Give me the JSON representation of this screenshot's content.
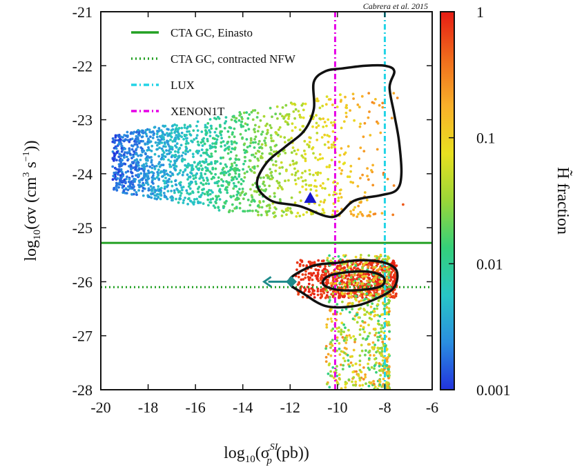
{
  "chart_data": {
    "type": "scatter",
    "credit": "Cabrera et al. 2015",
    "xlabel_parts": {
      "pre": "log",
      "sub": "10",
      "open": "(σ",
      "sup": "SI",
      "sub2": "p",
      "close": "(pb))"
    },
    "ylabel_parts": {
      "pre": "log",
      "sub": "10",
      "mid": "(σv (cm",
      "sup1": "3",
      "mid2": " s",
      "sup2": "−1",
      "close": "))"
    },
    "colorbar_label": "H̃ fraction",
    "xlim": [
      -20,
      -6
    ],
    "ylim": [
      -28,
      -21
    ],
    "x_ticks": [
      "-20",
      "-18",
      "-16",
      "-14",
      "-12",
      "-10",
      "-8",
      "-6"
    ],
    "y_ticks": [
      "-21",
      "-22",
      "-23",
      "-24",
      "-25",
      "-26",
      "-27",
      "-28"
    ],
    "colorbar": {
      "scale": "log",
      "range": [
        0.001,
        1
      ],
      "ticks": [
        "1",
        "0.1",
        "0.01",
        "0.001"
      ],
      "colors": [
        "#2233dd",
        "#2a8ee0",
        "#28c6c6",
        "#34d07a",
        "#9ad638",
        "#e8e020",
        "#f8b02a",
        "#f06c1c",
        "#e61c14"
      ]
    },
    "legend": {
      "position": "top-left",
      "entries": [
        {
          "label": "CTA GC, Einasto",
          "style": "solid",
          "color": "#22a022"
        },
        {
          "label": "CTA GC, contracted NFW",
          "style": "dotted",
          "color": "#22a022"
        },
        {
          "label": "LUX",
          "style": "dash-dot",
          "color": "#22d4e6"
        },
        {
          "label": "XENON1T",
          "style": "dash-dot",
          "color": "#e600e6"
        }
      ]
    },
    "reference_lines": [
      {
        "name": "CTA GC, Einasto",
        "orientation": "horizontal",
        "value": -25.28
      },
      {
        "name": "CTA GC, contracted NFW",
        "orientation": "horizontal",
        "value": -26.1
      },
      {
        "name": "LUX",
        "orientation": "vertical",
        "value": -8.0
      },
      {
        "name": "XENON1T",
        "orientation": "vertical",
        "value": -10.1
      }
    ],
    "scatter_regions": [
      {
        "name": "upper-cloud",
        "x_range": [
          -19.5,
          -7.2
        ],
        "y_range": [
          -24.8,
          -22.2
        ],
        "fraction_range": [
          0.001,
          0.5
        ],
        "note": "color increases with x"
      },
      {
        "name": "red-band",
        "x_range": [
          -11.8,
          -7.5
        ],
        "y_range": [
          -26.3,
          -25.6
        ],
        "fraction_range": [
          0.6,
          1
        ]
      },
      {
        "name": "lower-tail",
        "x_range": [
          -10.5,
          -7.8
        ],
        "y_range": [
          -28,
          -25.5
        ],
        "fraction_range": [
          0.01,
          0.3
        ]
      }
    ],
    "contours": [
      {
        "name": "upper-contour",
        "points": [
          [
            -11.0,
            -22.3
          ],
          [
            -10.5,
            -22.1
          ],
          [
            -9.8,
            -22.05
          ],
          [
            -8.8,
            -22.0
          ],
          [
            -8.0,
            -22.0
          ],
          [
            -7.6,
            -22.1
          ],
          [
            -7.8,
            -22.4
          ],
          [
            -7.6,
            -22.9
          ],
          [
            -7.4,
            -23.4
          ],
          [
            -7.3,
            -24.0
          ],
          [
            -7.5,
            -24.3
          ],
          [
            -8.2,
            -24.4
          ],
          [
            -9.3,
            -24.5
          ],
          [
            -10.2,
            -24.8
          ],
          [
            -11.6,
            -24.6
          ],
          [
            -12.8,
            -24.5
          ],
          [
            -13.4,
            -24.2
          ],
          [
            -13.0,
            -23.8
          ],
          [
            -12.2,
            -23.5
          ],
          [
            -11.4,
            -23.2
          ],
          [
            -11.0,
            -22.8
          ]
        ]
      },
      {
        "name": "lower-outer-contour",
        "points": [
          [
            -11.9,
            -25.9
          ],
          [
            -11.0,
            -25.7
          ],
          [
            -10.0,
            -25.65
          ],
          [
            -9.0,
            -25.6
          ],
          [
            -8.0,
            -25.65
          ],
          [
            -7.5,
            -25.8
          ],
          [
            -7.6,
            -26.1
          ],
          [
            -8.3,
            -26.3
          ],
          [
            -9.3,
            -26.45
          ],
          [
            -10.5,
            -26.45
          ],
          [
            -11.5,
            -26.2
          ],
          [
            -12.0,
            -26.05
          ]
        ]
      },
      {
        "name": "lower-inner-contour",
        "points": [
          [
            -10.4,
            -25.9
          ],
          [
            -9.5,
            -25.82
          ],
          [
            -8.6,
            -25.82
          ],
          [
            -8.05,
            -25.92
          ],
          [
            -8.15,
            -26.08
          ],
          [
            -9.0,
            -26.15
          ],
          [
            -10.0,
            -26.15
          ],
          [
            -10.6,
            -26.05
          ]
        ]
      }
    ],
    "markers": [
      {
        "name": "blue-triangle",
        "shape": "triangle",
        "x": -11.15,
        "y": -24.45,
        "color": "#1616cc"
      },
      {
        "name": "teal-diamond",
        "shape": "diamond",
        "x": -11.95,
        "y": -26.0,
        "color": "#1d8a8a"
      },
      {
        "name": "teal-arrow",
        "shape": "arrow-left",
        "x_from": -12.1,
        "x_to": -13.1,
        "y": -26.0,
        "color": "#1d8a8a"
      }
    ]
  }
}
